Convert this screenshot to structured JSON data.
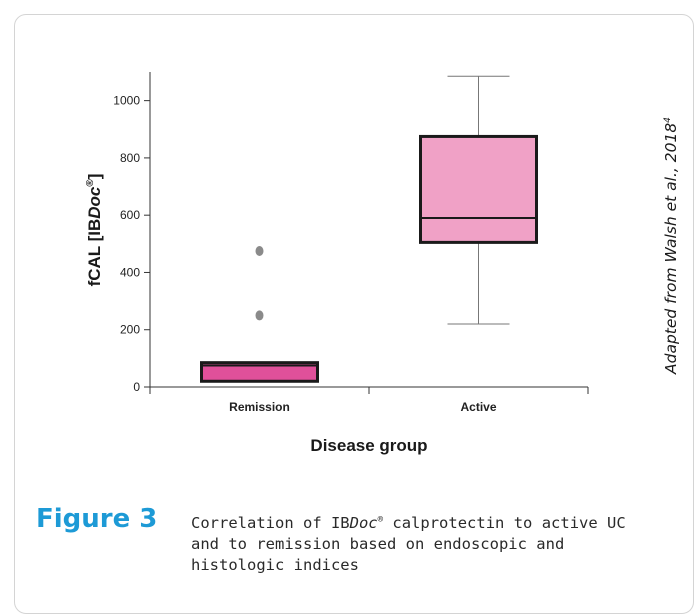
{
  "chart_data": {
    "type": "box",
    "ylabel_pre": "fCAL [IB",
    "ylabel_it": "Doc",
    "ylabel_sup": "®",
    "ylabel_post": "]",
    "xlabel": "Disease group",
    "ylim": [
      0,
      1100
    ],
    "yticks": [
      0,
      200,
      400,
      600,
      800,
      1000
    ],
    "groups": [
      {
        "name": "Remission",
        "min": 0,
        "q1": 20,
        "median": 75,
        "q3": 85,
        "max": 85,
        "outliers": [
          250,
          475
        ],
        "color": "#e0509a"
      },
      {
        "name": "Active",
        "min": 220,
        "q1": 505,
        "median": 590,
        "q3": 875,
        "max": 1085,
        "outliers": [],
        "color": "#f0a1c6"
      }
    ]
  },
  "side_note": {
    "text": "Adapted from Walsh et al., 2018",
    "sup": "4"
  },
  "caption": {
    "label": "Figure 3",
    "text_pre": "Correlation of IB",
    "text_it": "Doc",
    "text_sup": "®",
    "text_post": " calprotectin to active UC and to remission based on endoscopic and histologic indices"
  }
}
